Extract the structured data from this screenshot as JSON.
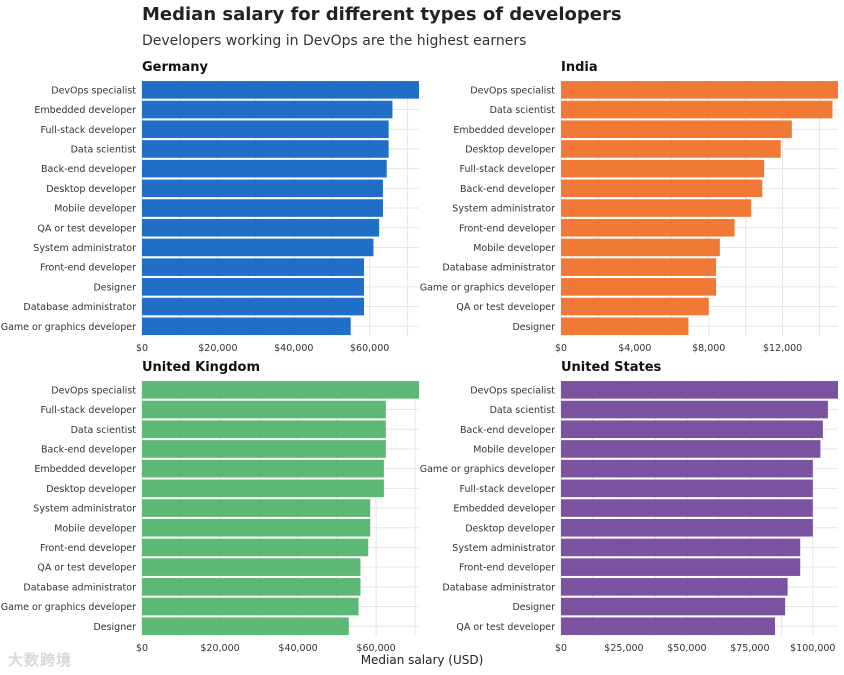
{
  "title": "Median salary for different types of developers",
  "subtitle": "Developers working in DevOps are the highest earners",
  "xlabel": "Median salary (USD)",
  "watermark": "大数跨境",
  "chart_data": [
    {
      "type": "bar",
      "orientation": "horizontal",
      "title": "Germany",
      "color": "#1f6fc9",
      "categories": [
        "DevOps specialist",
        "Embedded developer",
        "Full-stack developer",
        "Data scientist",
        "Back-end developer",
        "Desktop developer",
        "Mobile developer",
        "QA or test developer",
        "System administrator",
        "Front-end developer",
        "Designer",
        "Database administrator",
        "Game or graphics developer"
      ],
      "values": [
        73000,
        66000,
        65000,
        65000,
        64500,
        63500,
        63500,
        62500,
        61000,
        58500,
        58500,
        58500,
        55000
      ],
      "xlim": [
        0,
        73000
      ],
      "ticks": [
        0,
        20000,
        40000,
        60000
      ],
      "tick_labels": [
        "$0",
        "$20,000",
        "$40,000",
        "$60,000"
      ]
    },
    {
      "type": "bar",
      "orientation": "horizontal",
      "title": "India",
      "color": "#f07a35",
      "categories": [
        "DevOps specialist",
        "Data scientist",
        "Embedded developer",
        "Desktop developer",
        "Full-stack developer",
        "Back-end developer",
        "System administrator",
        "Front-end developer",
        "Mobile developer",
        "Database administrator",
        "Game or graphics developer",
        "QA or test developer",
        "Designer"
      ],
      "values": [
        15000,
        14700,
        12500,
        11900,
        11000,
        10900,
        10300,
        9400,
        8600,
        8400,
        8400,
        8000,
        6900
      ],
      "xlim": [
        0,
        15000
      ],
      "ticks": [
        0,
        4000,
        8000,
        12000
      ],
      "tick_labels": [
        "$0",
        "$4,000",
        "$8,000",
        "$12,000"
      ]
    },
    {
      "type": "bar",
      "orientation": "horizontal",
      "title": "United Kingdom",
      "color": "#5cb874",
      "categories": [
        "DevOps specialist",
        "Full-stack developer",
        "Data scientist",
        "Back-end developer",
        "Embedded developer",
        "Desktop developer",
        "System administrator",
        "Mobile developer",
        "Front-end developer",
        "QA or test developer",
        "Database administrator",
        "Game or graphics developer",
        "Designer"
      ],
      "values": [
        71000,
        62500,
        62500,
        62500,
        62000,
        62000,
        58500,
        58500,
        58000,
        56000,
        56000,
        55500,
        53000
      ],
      "xlim": [
        0,
        71000
      ],
      "ticks": [
        0,
        20000,
        40000,
        60000
      ],
      "tick_labels": [
        "$0",
        "$20,000",
        "$40,000",
        "$60,000"
      ]
    },
    {
      "type": "bar",
      "orientation": "horizontal",
      "title": "United States",
      "color": "#7b52a0",
      "categories": [
        "DevOps specialist",
        "Data scientist",
        "Back-end developer",
        "Mobile developer",
        "Game or graphics developer",
        "Full-stack developer",
        "Embedded developer",
        "Desktop developer",
        "System administrator",
        "Front-end developer",
        "Database administrator",
        "Designer",
        "QA or test developer"
      ],
      "values": [
        110000,
        106000,
        104000,
        103000,
        100000,
        100000,
        100000,
        100000,
        95000,
        95000,
        90000,
        89000,
        85000
      ],
      "xlim": [
        0,
        110000
      ],
      "ticks": [
        0,
        25000,
        50000,
        75000,
        100000
      ],
      "tick_labels": [
        "$0",
        "$25,000",
        "$50,000",
        "$75,000",
        "$100,000"
      ]
    }
  ]
}
